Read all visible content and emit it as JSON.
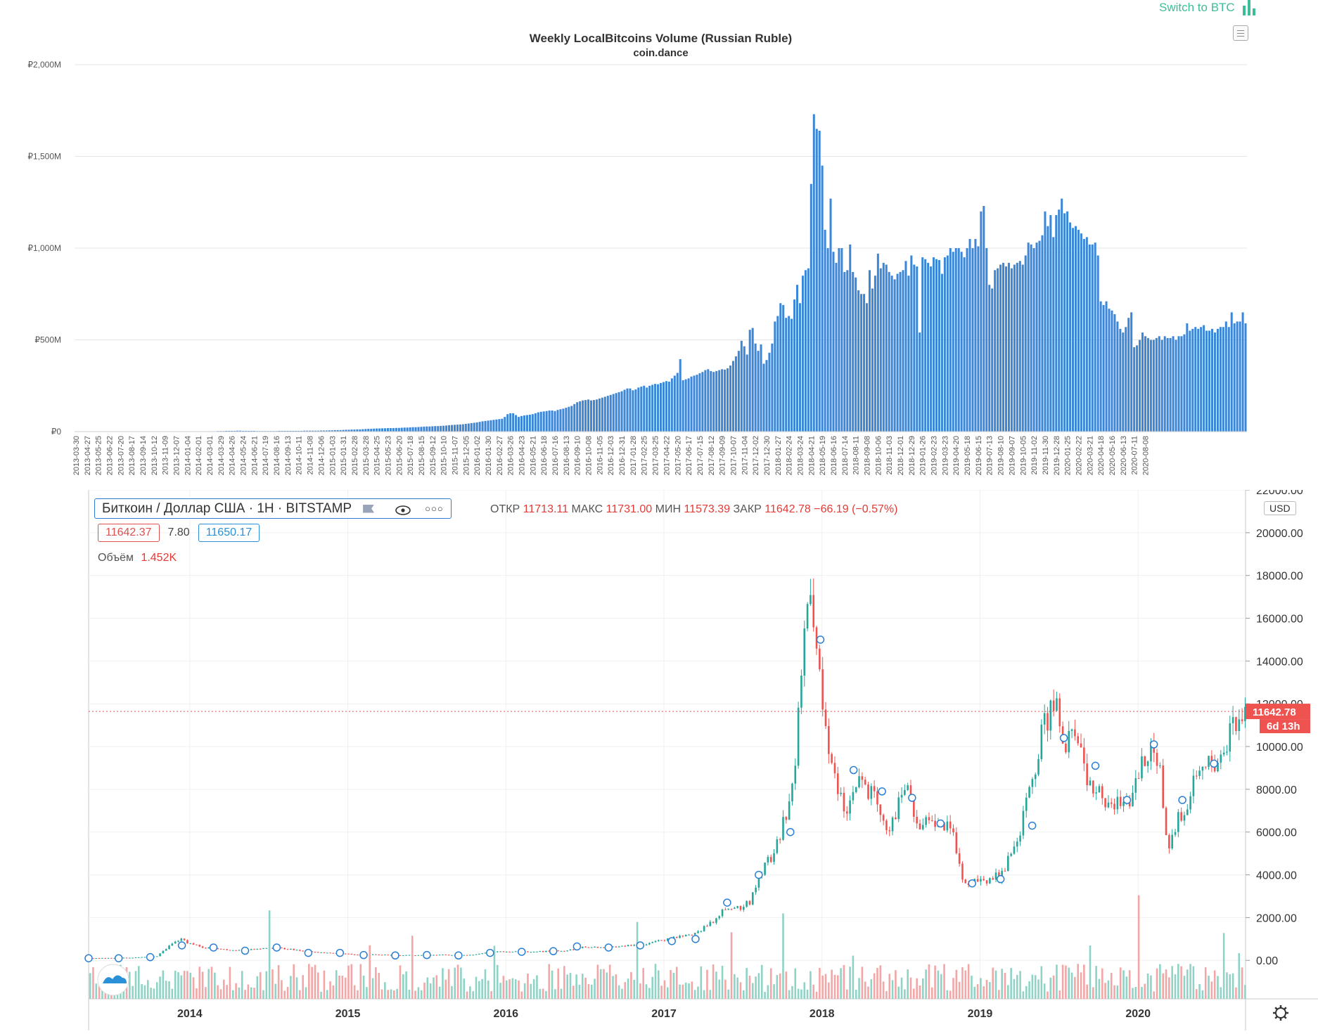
{
  "header": {
    "switch_label": "Switch to BTC",
    "switch_icon": "bar-chart-icon",
    "menu_icon": "hamburger-menu-icon"
  },
  "colors": {
    "volume_bar": "#3b86d6",
    "candle_up": "#26a69a",
    "candle_down": "#ef5350",
    "vol_up": "#8fd3c6",
    "vol_down": "#f3a6a6",
    "accent_green": "#3dbd9a"
  },
  "chart_data": [
    {
      "type": "bar",
      "title": "Weekly LocalBitcoins Volume (Russian Ruble)",
      "subtitle": "coin.dance",
      "ylim": [
        0,
        2000
      ],
      "y_ticks": [
        0,
        500,
        1000,
        1500,
        2000
      ],
      "y_tick_labels": [
        "₽0",
        "₽500M",
        "₽1,000M",
        "₽1,500M",
        "₽2,000M"
      ],
      "x_tick_labels": [
        "2013-03-30",
        "2013-04-27",
        "2013-05-25",
        "2013-06-22",
        "2013-07-20",
        "2013-08-17",
        "2013-09-14",
        "2013-10-12",
        "2013-11-09",
        "2013-12-07",
        "2014-01-04",
        "2014-02-01",
        "2014-03-01",
        "2014-03-29",
        "2014-04-26",
        "2014-05-24",
        "2014-06-21",
        "2014-07-19",
        "2014-08-16",
        "2014-09-13",
        "2014-10-11",
        "2014-11-08",
        "2014-12-06",
        "2015-01-03",
        "2015-01-31",
        "2015-02-28",
        "2015-03-28",
        "2015-04-25",
        "2015-05-23",
        "2015-06-20",
        "2015-07-18",
        "2015-08-15",
        "2015-09-12",
        "2015-10-10",
        "2015-11-07",
        "2015-12-05",
        "2016-01-02",
        "2016-01-30",
        "2016-02-27",
        "2016-03-26",
        "2016-04-23",
        "2016-05-21",
        "2016-06-18",
        "2016-07-16",
        "2016-08-13",
        "2016-09-10",
        "2016-10-08",
        "2016-11-05",
        "2016-12-03",
        "2016-12-31",
        "2017-01-28",
        "2017-02-25",
        "2017-03-25",
        "2017-04-22",
        "2017-05-20",
        "2017-06-17",
        "2017-07-15",
        "2017-08-12",
        "2017-09-09",
        "2017-10-07",
        "2017-11-04",
        "2017-12-02",
        "2017-12-30",
        "2018-01-27",
        "2018-02-24",
        "2018-03-24",
        "2018-04-21",
        "2018-05-19",
        "2018-06-16",
        "2018-07-14",
        "2018-08-11",
        "2018-09-08",
        "2018-10-06",
        "2018-11-03",
        "2018-12-01",
        "2018-12-29",
        "2019-01-26",
        "2019-02-23",
        "2019-03-23",
        "2019-04-20",
        "2019-05-18",
        "2019-06-15",
        "2019-07-13",
        "2019-08-10",
        "2019-09-07",
        "2019-10-05",
        "2019-11-02",
        "2019-11-30",
        "2019-12-28",
        "2020-01-25",
        "2020-02-22",
        "2020-03-21",
        "2020-04-18",
        "2020-05-16",
        "2020-06-13",
        "2020-07-11",
        "2020-08-08"
      ],
      "bars_per_label": 4,
      "values": [
        0,
        0,
        0,
        0,
        0,
        0,
        0,
        0,
        0,
        0,
        0,
        0,
        0,
        0,
        0,
        0,
        0,
        0,
        0,
        0,
        0,
        0,
        0,
        0,
        0,
        0,
        0,
        0,
        0,
        0,
        0,
        0,
        0,
        0,
        0,
        0,
        0,
        0,
        0,
        0,
        0,
        0,
        0,
        0,
        0,
        0,
        0,
        0,
        2,
        2,
        2,
        3,
        3,
        3,
        4,
        4,
        4,
        4,
        5,
        5,
        4,
        4,
        4,
        4,
        4,
        3,
        3,
        3,
        3,
        3,
        3,
        3,
        3,
        4,
        4,
        4,
        4,
        4,
        4,
        4,
        4,
        4,
        5,
        5,
        5,
        5,
        5,
        5,
        6,
        6,
        6,
        7,
        7,
        8,
        8,
        8,
        9,
        10,
        10,
        11,
        11,
        12,
        12,
        13,
        14,
        15,
        15,
        16,
        17,
        17,
        18,
        18,
        19,
        19,
        19,
        20,
        20,
        21,
        22,
        22,
        23,
        24,
        24,
        25,
        26,
        27,
        28,
        28,
        29,
        30,
        30,
        31,
        32,
        33,
        35,
        36,
        37,
        38,
        39,
        40,
        42,
        44,
        46,
        48,
        50,
        53,
        56,
        58,
        60,
        62,
        64,
        66,
        68,
        70,
        80,
        95,
        100,
        100,
        90,
        80,
        85,
        88,
        90,
        92,
        95,
        100,
        105,
        108,
        110,
        112,
        115,
        115,
        112,
        118,
        122,
        125,
        130,
        135,
        140,
        150,
        160,
        165,
        170,
        172,
        175,
        170,
        172,
        175,
        180,
        185,
        190,
        195,
        200,
        205,
        210,
        215,
        220,
        228,
        235,
        235,
        225,
        230,
        240,
        245,
        250,
        240,
        250,
        255,
        260,
        258,
        265,
        270,
        275,
        272,
        290,
        305,
        320,
        395,
        280,
        285,
        290,
        300,
        305,
        310,
        318,
        325,
        335,
        340,
        330,
        325,
        330,
        335,
        340,
        338,
        345,
        360,
        385,
        410,
        440,
        495,
        465,
        420,
        555,
        565,
        480,
        440,
        475,
        370,
        390,
        430,
        480,
        600,
        630,
        700,
        690,
        620,
        630,
        615,
        720,
        800,
        700,
        850,
        880,
        890,
        1350,
        1730,
        1650,
        1640,
        1450,
        1100,
        1000,
        1270,
        980,
        920,
        1000,
        1000,
        870,
        880,
        1020,
        870,
        840,
        770,
        750,
        750,
        700,
        880,
        780,
        850,
        970,
        890,
        920,
        910,
        870,
        850,
        830,
        860,
        870,
        880,
        930,
        850,
        960,
        910,
        900,
        540,
        950,
        940,
        920,
        900,
        950,
        940,
        935,
        860,
        950,
        960,
        1000,
        980,
        1000,
        1000,
        980,
        950,
        1000,
        1050,
        1000,
        1050,
        1010,
        1200,
        1230,
        1000,
        800,
        780,
        880,
        890,
        910,
        920,
        900,
        920,
        890,
        910,
        920,
        930,
        910,
        960,
        1030,
        1020,
        1000,
        1030,
        1040,
        1070,
        1200,
        1120,
        1180,
        1060,
        1180,
        1210,
        1270,
        1190,
        1200,
        1140,
        1110,
        1120,
        1100,
        1080,
        1050,
        1060,
        1020,
        1020,
        1030,
        960,
        710,
        690,
        710,
        670,
        660,
        640,
        600,
        560,
        540,
        570,
        620,
        650,
        460,
        470,
        500,
        540,
        520,
        510,
        500,
        500,
        510,
        520,
        500,
        520,
        510,
        510,
        520,
        500,
        520,
        520,
        530,
        590,
        550,
        560,
        570,
        560,
        570,
        580,
        550,
        550,
        560,
        540,
        560,
        570,
        570,
        600,
        570,
        650,
        590,
        600,
        600,
        650,
        590
      ],
      "units": "RUB (millions)"
    },
    {
      "type": "candlestick",
      "title": "Биткоин / Доллар США · 1Н · BITSTAMP",
      "legend": {
        "open_label": "ОТКР",
        "open_value": "11713.11",
        "high_label": "МАКС",
        "high_value": "11731.00",
        "low_label": "МИН",
        "low_value": "11573.39",
        "close_label": "ЗАКР",
        "close_value": "11642.78",
        "change_value": "−66.19 (−0.57%)",
        "bid": "11642.37",
        "spread": "7.80",
        "ask": "11650.17",
        "volume_label": "Объём",
        "volume_value": "1.452K"
      },
      "currency": "USD",
      "last_price_label": "11642.78",
      "countdown_label": "6d 13h",
      "last_price": 11642.78,
      "ylim": [
        -1800,
        22000
      ],
      "y_ticks": [
        0,
        2000,
        4000,
        6000,
        8000,
        10000,
        12000,
        14000,
        16000,
        18000,
        20000,
        22000
      ],
      "y_tick_labels": [
        "0.00",
        "2000.00",
        "4000.00",
        "6000.00",
        "8000.00",
        "10000.00",
        "12000.00",
        "14000.00",
        "16000.00",
        "18000.00",
        "20000.00",
        "22000.00"
      ],
      "x_tick_labels": [
        "2014",
        "2015",
        "2016",
        "2017",
        "2018",
        "2019",
        "2020"
      ],
      "x_range": [
        2013.36,
        2020.68
      ],
      "x_tick_positions": [
        2014,
        2015,
        2016,
        2017,
        2018,
        2019,
        2020
      ],
      "price_series": {
        "t": [
          2013.36,
          2013.5,
          2013.65,
          2013.8,
          2013.9,
          2013.95,
          2014.0,
          2014.1,
          2014.2,
          2014.3,
          2014.4,
          2014.5,
          2014.6,
          2014.7,
          2014.8,
          2014.9,
          2015.0,
          2015.1,
          2015.2,
          2015.3,
          2015.4,
          2015.5,
          2015.6,
          2015.7,
          2015.8,
          2015.9,
          2016.0,
          2016.1,
          2016.2,
          2016.3,
          2016.4,
          2016.5,
          2016.6,
          2016.7,
          2016.8,
          2016.9,
          2017.0,
          2017.1,
          2017.2,
          2017.3,
          2017.4,
          2017.45,
          2017.5,
          2017.55,
          2017.6,
          2017.65,
          2017.7,
          2017.75,
          2017.8,
          2017.85,
          2017.9,
          2017.95,
          2017.97,
          2018.0,
          2018.03,
          2018.06,
          2018.08,
          2018.1,
          2018.15,
          2018.2,
          2018.25,
          2018.3,
          2018.35,
          2018.4,
          2018.45,
          2018.5,
          2018.55,
          2018.6,
          2018.65,
          2018.7,
          2018.75,
          2018.8,
          2018.85,
          2018.9,
          2018.95,
          2019.0,
          2019.05,
          2019.1,
          2019.15,
          2019.2,
          2019.25,
          2019.3,
          2019.35,
          2019.4,
          2019.45,
          2019.5,
          2019.55,
          2019.6,
          2019.65,
          2019.7,
          2019.75,
          2019.8,
          2019.85,
          2019.9,
          2019.95,
          2020.0,
          2020.05,
          2020.1,
          2020.15,
          2020.2,
          2020.25,
          2020.3,
          2020.35,
          2020.4,
          2020.45,
          2020.5,
          2020.55,
          2020.6,
          2020.65,
          2020.68
        ],
        "close": [
          100,
          110,
          130,
          180,
          800,
          1000,
          800,
          600,
          550,
          450,
          500,
          600,
          550,
          480,
          380,
          350,
          300,
          250,
          280,
          230,
          240,
          230,
          260,
          240,
          250,
          380,
          420,
          400,
          410,
          430,
          450,
          650,
          600,
          620,
          700,
          750,
          950,
          1100,
          1200,
          1700,
          2400,
          2600,
          2500,
          2700,
          3800,
          4500,
          5000,
          6000,
          7500,
          10000,
          16000,
          17000,
          14000,
          13000,
          11000,
          9000,
          10000,
          8500,
          7000,
          7500,
          9000,
          8000,
          7500,
          6500,
          6300,
          7500,
          8000,
          6400,
          6500,
          6400,
          6500,
          6300,
          5500,
          3800,
          3500,
          3700,
          3500,
          3900,
          4000,
          5200,
          5500,
          7900,
          8500,
          10800,
          11500,
          12000,
          10000,
          10500,
          9500,
          8300,
          8200,
          7400,
          7300,
          7200,
          7500,
          8500,
          9400,
          9800,
          8800,
          5000,
          6500,
          6800,
          8000,
          9000,
          9500,
          9300,
          9200,
          11000,
          11700,
          11642
        ]
      },
      "markers": [
        {
          "t": 2013.36,
          "v": 100
        },
        {
          "t": 2013.55,
          "v": 100
        },
        {
          "t": 2013.75,
          "v": 150
        },
        {
          "t": 2013.95,
          "v": 700
        },
        {
          "t": 2014.15,
          "v": 600
        },
        {
          "t": 2014.35,
          "v": 450
        },
        {
          "t": 2014.55,
          "v": 600
        },
        {
          "t": 2014.75,
          "v": 350
        },
        {
          "t": 2014.95,
          "v": 350
        },
        {
          "t": 2015.1,
          "v": 250
        },
        {
          "t": 2015.3,
          "v": 230
        },
        {
          "t": 2015.5,
          "v": 250
        },
        {
          "t": 2015.7,
          "v": 230
        },
        {
          "t": 2015.9,
          "v": 350
        },
        {
          "t": 2016.1,
          "v": 400
        },
        {
          "t": 2016.3,
          "v": 430
        },
        {
          "t": 2016.45,
          "v": 650
        },
        {
          "t": 2016.65,
          "v": 600
        },
        {
          "t": 2016.85,
          "v": 700
        },
        {
          "t": 2017.05,
          "v": 900
        },
        {
          "t": 2017.2,
          "v": 1000
        },
        {
          "t": 2017.4,
          "v": 2700
        },
        {
          "t": 2017.6,
          "v": 4000
        },
        {
          "t": 2017.8,
          "v": 6000
        },
        {
          "t": 2017.99,
          "v": 15000
        },
        {
          "t": 2018.2,
          "v": 8900
        },
        {
          "t": 2018.38,
          "v": 7900
        },
        {
          "t": 2018.57,
          "v": 7600
        },
        {
          "t": 2018.75,
          "v": 6400
        },
        {
          "t": 2018.95,
          "v": 3600
        },
        {
          "t": 2019.13,
          "v": 3800
        },
        {
          "t": 2019.33,
          "v": 6300
        },
        {
          "t": 2019.53,
          "v": 10400
        },
        {
          "t": 2019.73,
          "v": 9100
        },
        {
          "t": 2019.93,
          "v": 7500
        },
        {
          "t": 2020.1,
          "v": 10100
        },
        {
          "t": 2020.28,
          "v": 7500
        },
        {
          "t": 2020.48,
          "v": 9200
        }
      ]
    }
  ]
}
